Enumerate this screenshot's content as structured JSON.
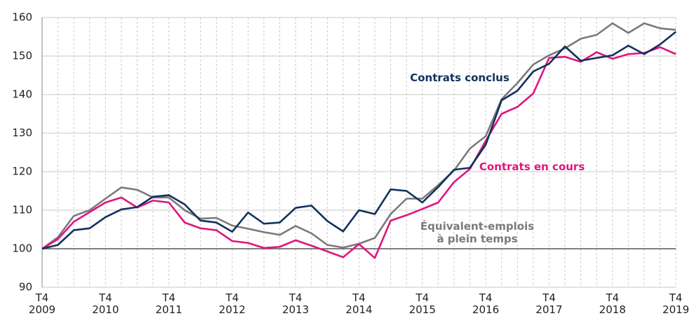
{
  "chart_data": {
    "type": "line",
    "categories": [
      "T4\n2009",
      null,
      null,
      null,
      "T4\n2010",
      null,
      null,
      null,
      "T4\n2011",
      null,
      null,
      null,
      "T4\n2012",
      null,
      null,
      null,
      "T4\n2013",
      null,
      null,
      null,
      "T4\n2014",
      null,
      null,
      null,
      "T4\n2015",
      null,
      null,
      null,
      "T4\n2016",
      null,
      null,
      null,
      "T4\n2017",
      null,
      null,
      null,
      "T4\n2018",
      null,
      null,
      null,
      "T4\n2019"
    ],
    "series": [
      {
        "name": "Contrats conclus",
        "color": "#13305e",
        "values": [
          100,
          101,
          104.8,
          105.3,
          108.2,
          110.2,
          110.8,
          113.5,
          113.9,
          111.5,
          107.3,
          106.8,
          104.4,
          109.4,
          106.5,
          106.8,
          110.6,
          111.2,
          107.2,
          104.5,
          110.0,
          109.0,
          115.4,
          115.0,
          112.0,
          116.0,
          120.5,
          121.0,
          127.0,
          138.5,
          141.0,
          146.0,
          148.0,
          152.5,
          148.8,
          149.5,
          150.2,
          152.7,
          150.5,
          153.0,
          156.3
        ]
      },
      {
        "name": "Contrats en cours",
        "color": "#e0157f",
        "values": [
          100,
          102.5,
          107.0,
          109.5,
          112.0,
          113.3,
          110.7,
          112.5,
          112.0,
          106.8,
          105.3,
          104.8,
          102.0,
          101.5,
          100.2,
          100.5,
          102.2,
          100.8,
          99.3,
          97.8,
          101.2,
          97.6,
          107.3,
          108.7,
          110.3,
          112.0,
          117.3,
          120.7,
          128.0,
          135.0,
          136.8,
          140.3,
          149.5,
          149.8,
          148.5,
          151.0,
          149.3,
          150.5,
          150.8,
          152.3,
          150.5
        ]
      },
      {
        "name": "Équivalent-emplois\nà plein temps",
        "color": "#7a7a7a",
        "values": [
          100,
          103.0,
          108.5,
          110.0,
          113.0,
          115.9,
          115.3,
          113.3,
          113.3,
          110.0,
          107.8,
          108.0,
          106.0,
          105.2,
          104.3,
          103.6,
          105.9,
          104.0,
          101.0,
          100.3,
          101.3,
          102.8,
          109.0,
          113.0,
          113.0,
          116.5,
          120.3,
          126.0,
          129.2,
          138.8,
          143.0,
          147.8,
          150.2,
          152.0,
          154.5,
          155.5,
          158.5,
          156.0,
          158.5,
          157.2,
          156.8
        ]
      }
    ],
    "ylim": [
      90,
      160
    ],
    "yticks": [
      90,
      100,
      110,
      120,
      130,
      140,
      150,
      160
    ],
    "reference_line": 100,
    "grid": true
  }
}
